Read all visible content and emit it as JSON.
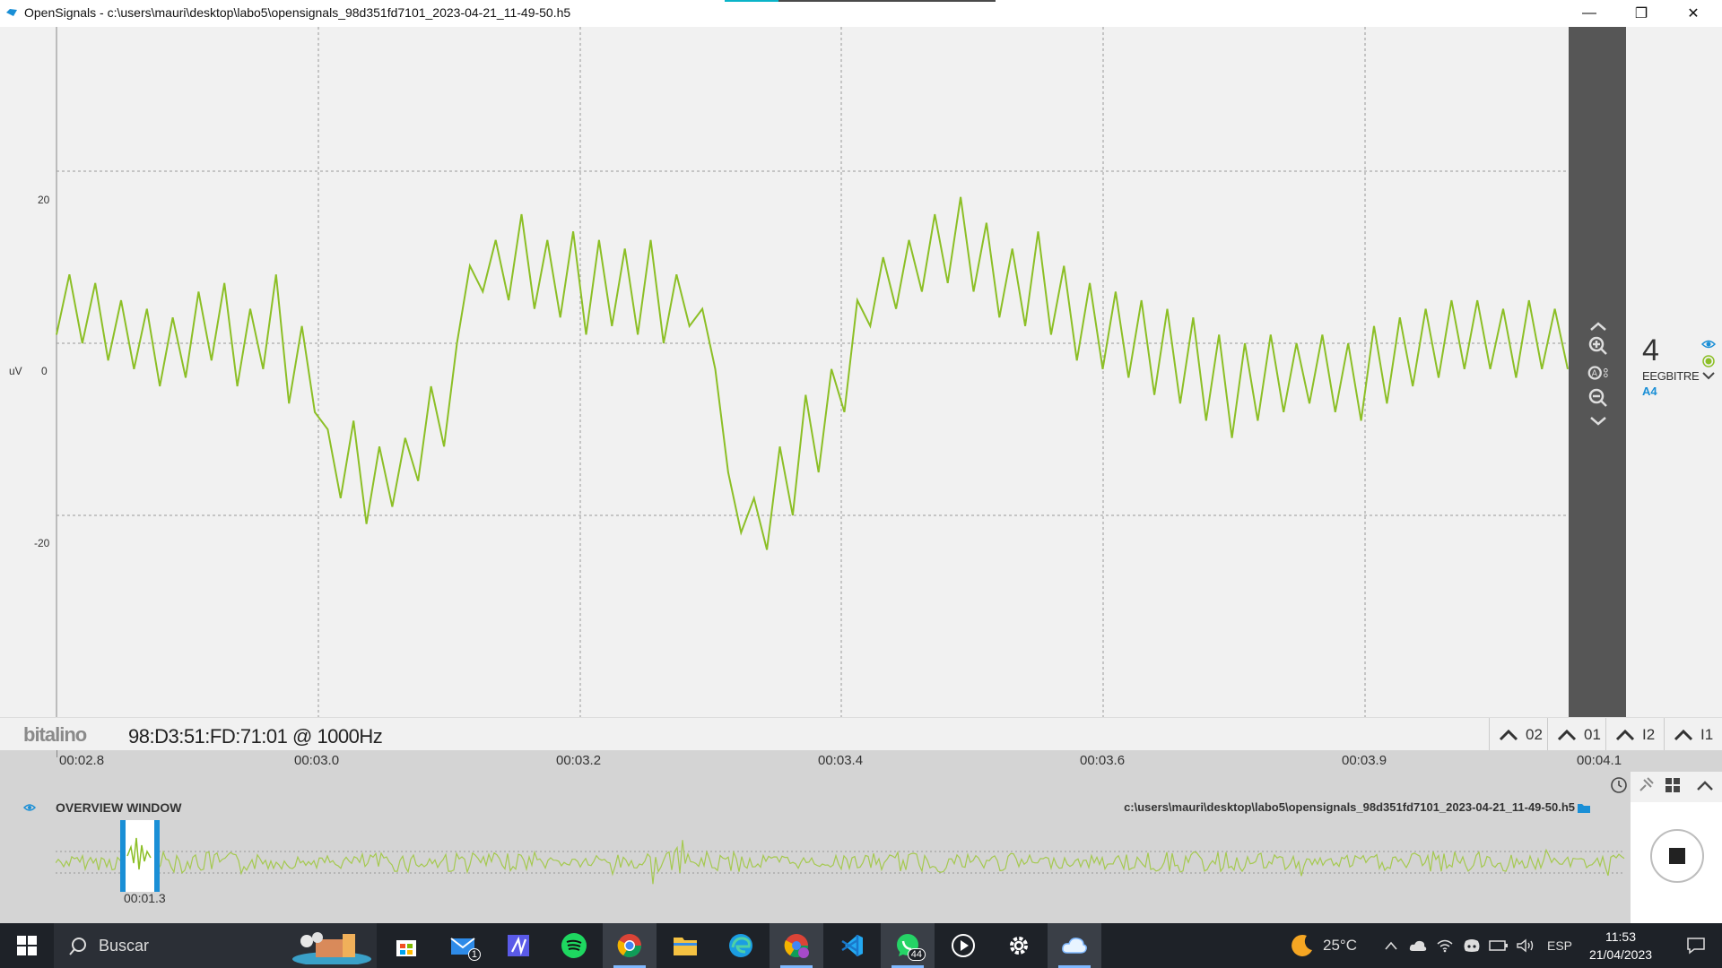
{
  "window": {
    "title": "OpenSignals - c:\\users\\mauri\\desktop\\labo5\\opensignals_98d351fd7101_2023-04-21_11-49-50.h5",
    "minimize": "—",
    "maximize": "❐",
    "close": "✕"
  },
  "plot": {
    "y_unit": "uV",
    "y_ticks": [
      "20",
      "0",
      "-20"
    ],
    "line_color": "#8cbf26"
  },
  "chart_data": {
    "type": "line",
    "title": "",
    "xlabel": "",
    "ylabel": "uV",
    "ylim": [
      -40,
      40
    ],
    "x_ticks": [
      "00:02.8",
      "00:03.0",
      "00:03.2",
      "00:03.4",
      "00:03.6",
      "00:03.9",
      "00:04.1"
    ],
    "series": [
      {
        "color": "#8cbf26",
        "values": [
          1,
          8,
          0,
          7,
          -2,
          5,
          -3,
          4,
          -5,
          3,
          -4,
          6,
          -2,
          7,
          -5,
          4,
          -3,
          8,
          -7,
          2,
          -8,
          -10,
          -18,
          -9,
          -21,
          -12,
          -19,
          -11,
          -16,
          -5,
          -12,
          0,
          9,
          6,
          12,
          5,
          15,
          4,
          12,
          3,
          13,
          1,
          12,
          2,
          11,
          1,
          12,
          0,
          8,
          2,
          4,
          -3,
          -15,
          -22,
          -18,
          -24,
          -12,
          -20,
          -6,
          -15,
          -3,
          -8,
          5,
          2,
          10,
          4,
          12,
          6,
          15,
          7,
          17,
          6,
          14,
          3,
          11,
          2,
          13,
          1,
          9,
          -2,
          7,
          -3,
          6,
          -4,
          5,
          -6,
          4,
          -7,
          3,
          -9,
          1,
          -11,
          0,
          -9,
          1,
          -8,
          0,
          -7,
          1,
          -8,
          0,
          -9,
          2,
          -7,
          3,
          -5,
          4,
          -4,
          5,
          -3,
          5,
          -3,
          4,
          -4,
          5,
          -3,
          4,
          -3
        ],
        "x_start": "00:02.8",
        "x_end": "00:04.1"
      }
    ]
  },
  "controls": {
    "up_icon": "chevron-up",
    "zoom_in_icon": "zoom-in",
    "auto_icon": "auto-scale",
    "zoom_out_icon": "zoom-out",
    "down_icon": "chevron-down"
  },
  "channel": {
    "number": "4",
    "label": "EEGBITRE",
    "sub": "A4"
  },
  "infobar": {
    "brand": "bitalino",
    "device": "98:D3:51:FD:71:01 @ 1000Hz",
    "tabs": [
      "02",
      "01",
      "I2",
      "I1"
    ]
  },
  "time_axis": {
    "labels": [
      "00:02.8",
      "00:03.0",
      "00:03.2",
      "00:03.4",
      "00:03.6",
      "00:03.9",
      "00:04.1"
    ]
  },
  "overview": {
    "title": "OVERVIEW WINDOW",
    "file_path": "c:\\users\\mauri\\desktop\\labo5\\opensignals_98d351fd7101_2023-04-21_11-49-50.h5",
    "cursor_time": "00:01.3"
  },
  "taskbar": {
    "search_placeholder": "Buscar",
    "mail_badge": "1",
    "whatsapp_badge": "44",
    "weather": "25°C",
    "language": "ESP",
    "time": "11:53",
    "date": "21/04/2023"
  }
}
